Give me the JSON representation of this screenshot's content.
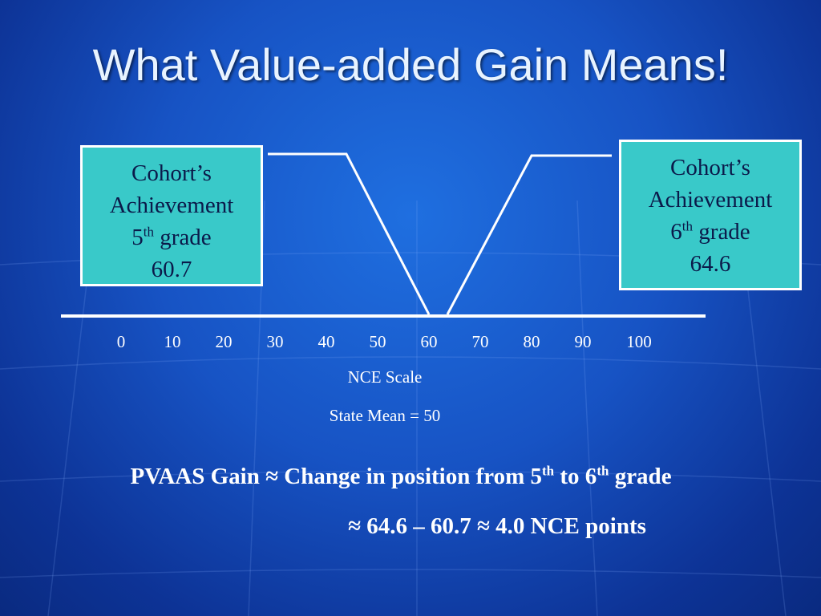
{
  "title": "What Value-added Gain Means!",
  "left_box": {
    "line1": "Cohort’s",
    "line2": "Achievement",
    "grade_num": "5",
    "grade_sup": "th",
    "grade_word": "grade",
    "value": "60.7"
  },
  "right_box": {
    "line1": "Cohort’s",
    "line2": "Achievement",
    "grade_num": "6",
    "grade_sup": "th",
    "grade_word": "grade",
    "value": "64.6"
  },
  "scale": {
    "ticks": [
      "0",
      "10",
      "20",
      "30",
      "40",
      "50",
      "60",
      "70",
      "80",
      "90",
      "100"
    ],
    "label": "NCE Scale",
    "state_mean": "State Mean = 50"
  },
  "formula": {
    "line1_a": "PVAAS Gain ≈ Change in position from 5",
    "line1_sup1": "th",
    "line1_b": " to 6",
    "line1_sup2": "th",
    "line1_c": " grade",
    "line2": "≈ 64.6 – 60.7 ≈ 4.0 NCE points"
  },
  "colors": {
    "box_fill": "#39c9c9",
    "text": "#ffffff",
    "title": "#e8f3ff"
  }
}
